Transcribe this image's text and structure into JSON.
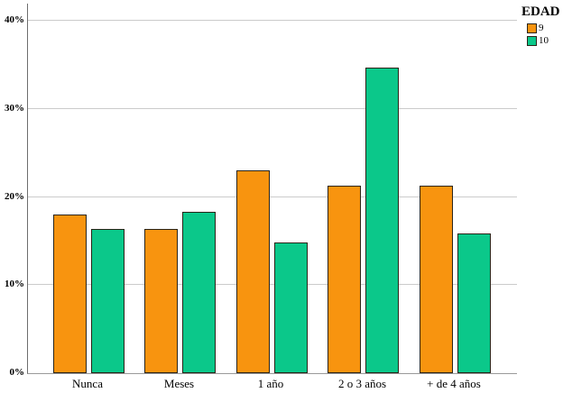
{
  "chart_data": {
    "type": "bar",
    "title": "",
    "xlabel": "",
    "ylabel": "",
    "categories": [
      "Nunca",
      "Meses",
      "1 año",
      "2 o 3 años",
      "+ de 4 años"
    ],
    "series": [
      {
        "name": "9",
        "color": "#F8940F",
        "values": [
          18.0,
          16.4,
          23.0,
          21.3,
          21.3
        ]
      },
      {
        "name": "10",
        "color": "#0BC88A",
        "values": [
          16.4,
          18.3,
          14.8,
          34.7,
          15.9
        ]
      }
    ],
    "yticks": [
      0,
      10,
      20,
      30,
      40
    ],
    "ytick_labels": [
      "0%",
      "10%",
      "20%",
      "30%",
      "40%"
    ],
    "ylim": [
      0,
      42
    ],
    "grid": "horizontal",
    "legend": {
      "title": "EDAD",
      "position": "top-right",
      "entries": [
        {
          "label": "9",
          "color": "#F8940F"
        },
        {
          "label": "10",
          "color": "#0BC88A"
        }
      ]
    },
    "colors": {
      "gridline": "#cbcbcb",
      "y_axis": "#6e6e6e",
      "x_axis": "#9a9a9a",
      "bar_border": "#2a2418",
      "text": "#000000"
    }
  }
}
